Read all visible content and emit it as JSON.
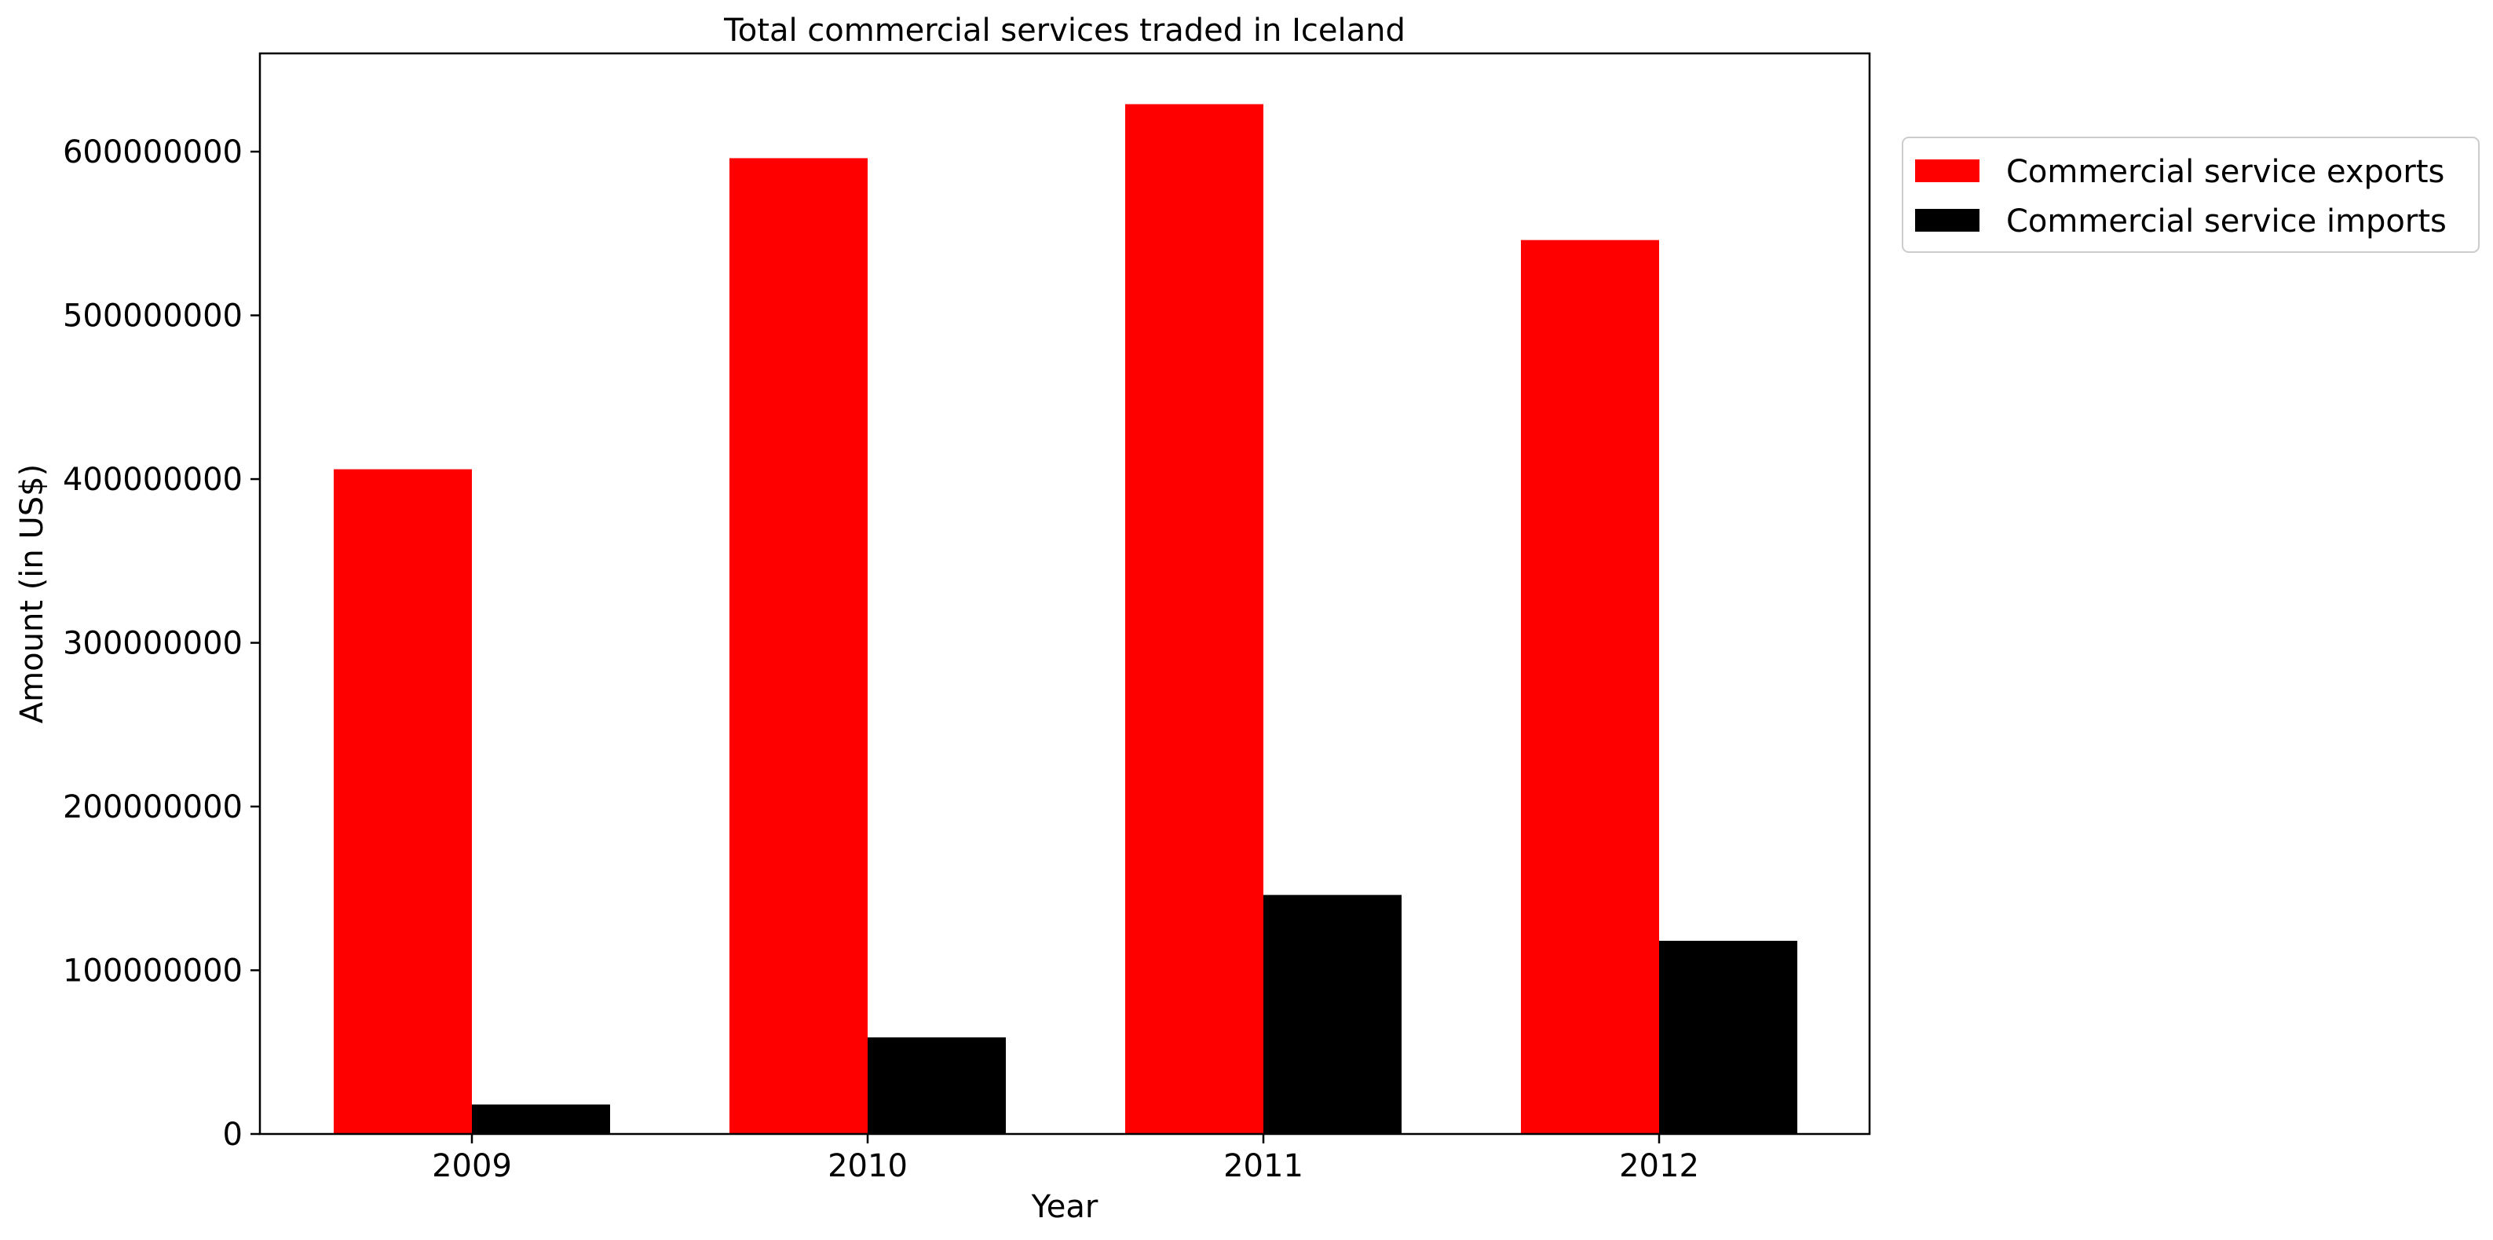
{
  "chart_data": {
    "type": "bar",
    "title": "Total commercial services traded in Iceland",
    "xlabel": "Year",
    "ylabel": "Amount (in US$)",
    "categories": [
      "2009",
      "2010",
      "2011",
      "2012"
    ],
    "series": [
      {
        "name": "Commercial service exports",
        "color": "#ff0000",
        "values": [
          406000000,
          596000000,
          629000000,
          546000000
        ]
      },
      {
        "name": "Commercial service imports",
        "color": "#000000",
        "values": [
          18000000,
          59000000,
          146000000,
          118000000
        ]
      }
    ],
    "ylim": [
      0,
      660000000
    ],
    "yticks": [
      0,
      100000000,
      200000000,
      300000000,
      400000000,
      500000000,
      600000000
    ],
    "ytick_labels": [
      "0",
      "100000000",
      "200000000",
      "300000000",
      "400000000",
      "500000000",
      "600000000"
    ],
    "grid": false,
    "legend_position": "outside top-right"
  }
}
